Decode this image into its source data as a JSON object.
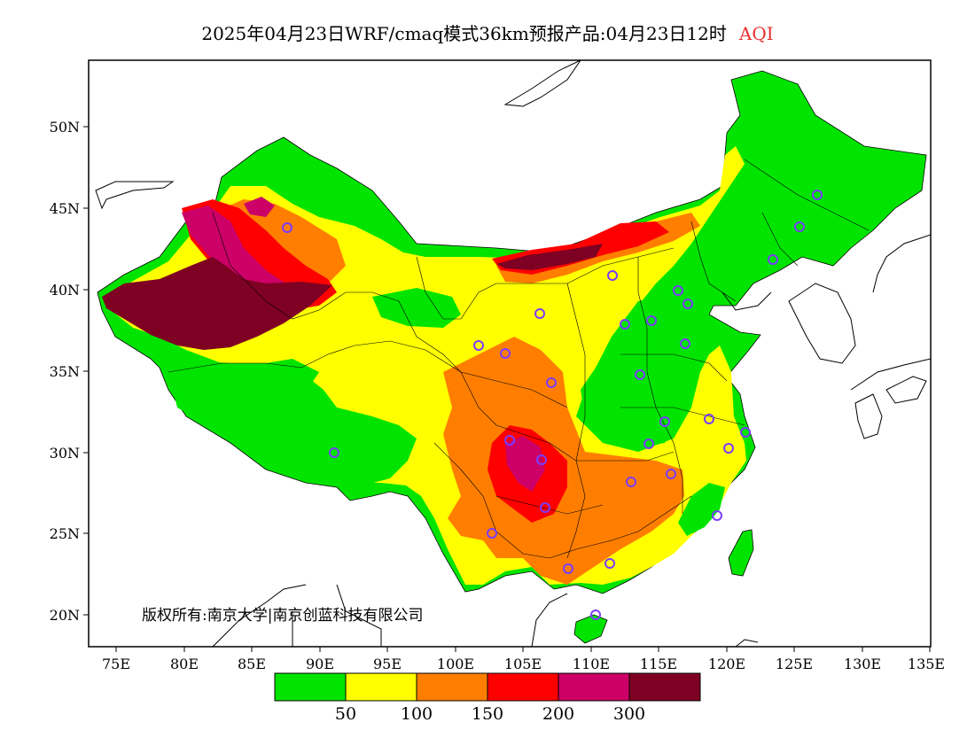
{
  "title": {
    "main": "2025年04月23日WRF/cmaq模式36km预报产品:04月23日12时",
    "variable": "AQI"
  },
  "axes": {
    "lat_labels": [
      "50N",
      "45N",
      "40N",
      "35N",
      "30N",
      "25N",
      "20N"
    ],
    "lon_labels": [
      "75E",
      "80E",
      "85E",
      "90E",
      "95E",
      "100E",
      "105E",
      "110E",
      "115E",
      "120E",
      "125E",
      "130E",
      "135E"
    ]
  },
  "copyright": "版权所有:南京大学|南京创蓝科技有限公司",
  "legend": {
    "colors": [
      "#00e400",
      "#ffff00",
      "#ff7e00",
      "#ff0000",
      "#cc0066",
      "#7e0023"
    ],
    "labels": [
      "50",
      "100",
      "150",
      "200",
      "300"
    ]
  },
  "colors": {
    "good": "#00e400",
    "moderate": "#ffff00",
    "usg": "#ff7e00",
    "unhealthy": "#ff0000",
    "very_unhealthy": "#cc0066",
    "hazardous": "#7e0023",
    "station_marker": "#7a3cff"
  }
}
